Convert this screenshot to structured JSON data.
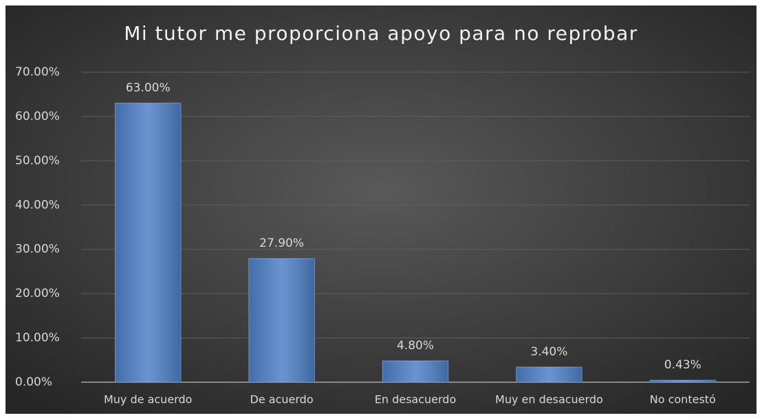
{
  "chart_data": {
    "type": "bar",
    "title": "Mi tutor me proporciona apoyo para no reprobar",
    "categories": [
      "Muy de acuerdo",
      "De acuerdo",
      "En desacuerdo",
      "Muy en desacuerdo",
      "No contestó"
    ],
    "values": [
      63,
      27.9,
      4.8,
      3.4,
      0.43
    ],
    "value_labels": [
      "63.00%",
      "27.90%",
      "4.80%",
      "3.40%",
      "0.43%"
    ],
    "color": "#4f81c7",
    "ylim": [
      0,
      70
    ],
    "yticks": [
      {
        "value": 0,
        "label": "0.00%"
      },
      {
        "value": 10,
        "label": "10.00%"
      },
      {
        "value": 20,
        "label": "20.00%"
      },
      {
        "value": 30,
        "label": "30.00%"
      },
      {
        "value": 40,
        "label": "40.00%"
      },
      {
        "value": 50,
        "label": "50.00%"
      },
      {
        "value": 60,
        "label": "60.00%"
      },
      {
        "value": 70,
        "label": "70.00%"
      }
    ],
    "grid": true
  }
}
